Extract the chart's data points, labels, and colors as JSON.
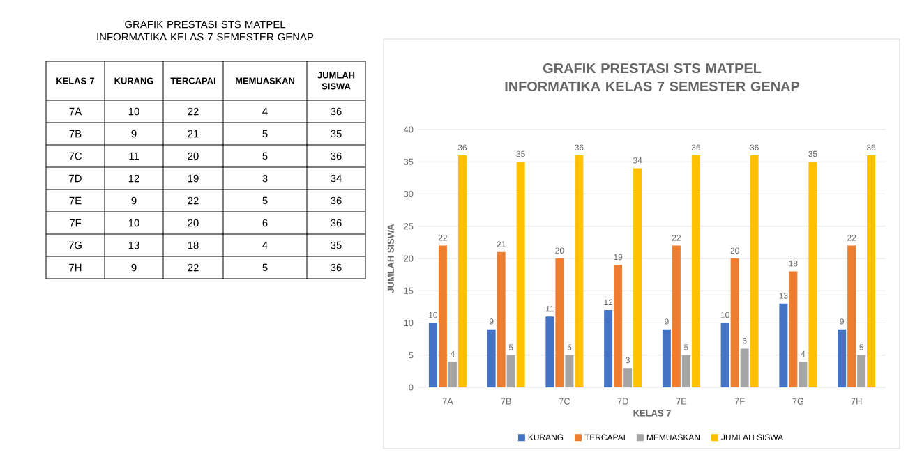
{
  "chart_data": {
    "type": "bar",
    "title": "GRAFIK PRESTASI STS MATPEL INFORMATIKA KELAS 7 SEMESTER GENAP",
    "xlabel": "KELAS 7",
    "ylabel": "JUMLAH SISWA",
    "categories": [
      "7A",
      "7B",
      "7C",
      "7D",
      "7E",
      "7F",
      "7G",
      "7H"
    ],
    "series": [
      {
        "name": "KURANG",
        "color": "#4472c4",
        "values": [
          10,
          9,
          11,
          12,
          9,
          10,
          13,
          9
        ],
        "value_labels": [
          "10",
          "9",
          "11",
          "12",
          "9",
          "10",
          "13",
          "9"
        ]
      },
      {
        "name": "TERCAPAI",
        "color": "#ed7d31",
        "values": [
          22,
          21,
          20,
          19,
          22,
          20,
          18,
          22
        ],
        "value_labels": [
          "22",
          "21",
          "20",
          "19",
          "22",
          "20",
          "18",
          "22"
        ]
      },
      {
        "name": "MEMUASKAN",
        "color": "#a5a5a5",
        "values": [
          4,
          5,
          5,
          3,
          5,
          6,
          4,
          5
        ],
        "value_labels": [
          "4",
          "5",
          "5",
          "3",
          "5",
          "6",
          "4",
          "5"
        ]
      },
      {
        "name": "JUMLAH SISWA",
        "color": "#ffc000",
        "values": [
          36,
          35,
          36,
          34,
          36,
          36,
          35,
          36
        ],
        "value_labels": [
          "36",
          "35",
          "36",
          "34",
          "36",
          "36",
          "35",
          "36"
        ]
      }
    ],
    "ylim": [
      0,
      40
    ],
    "yticks": [
      0,
      5,
      10,
      15,
      20,
      25,
      30,
      35,
      40
    ],
    "grid": "y",
    "legend": "bottom"
  }
}
